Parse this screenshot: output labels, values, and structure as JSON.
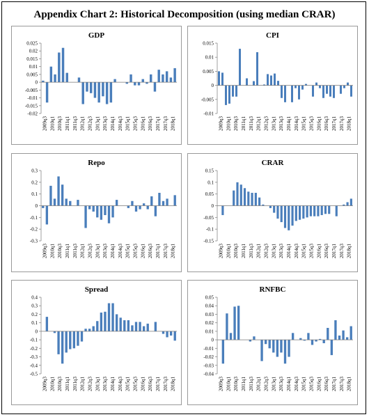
{
  "page": {
    "title": "Appendix Chart 2: Historical Decomposition (using median CRAR)"
  },
  "chart_data": [
    {
      "type": "bar",
      "title": "GDP",
      "ylim": [
        -0.02,
        0.025
      ],
      "yticks": [
        "-0.02",
        "-0.015",
        "-0.01",
        "-0.005",
        "0",
        "0.005",
        "0.01",
        "0.015",
        "0.02",
        "0.025"
      ],
      "x_tick_labels": [
        "2009q3",
        "2010q1",
        "2010q3",
        "2011q1",
        "2011q3",
        "2012q1",
        "2012q3",
        "2013q1",
        "2013q3",
        "2014q1",
        "2014q3",
        "2015q1",
        "2015q3",
        "2016q1",
        "2016q3",
        "2017q1",
        "2017q3",
        "2018q1"
      ],
      "color": "#4A7EBB",
      "values": [
        0.001,
        -0.013,
        0.01,
        0.005,
        0.019,
        0.022,
        0.006,
        0.0,
        0.0,
        0.003,
        -0.014,
        -0.006,
        -0.007,
        -0.01,
        -0.013,
        -0.009,
        -0.014,
        -0.013,
        0.002,
        0.0,
        0.0,
        -0.001,
        0.005,
        -0.002,
        -0.002,
        0.002,
        -0.001,
        0.005,
        -0.006,
        0.008,
        0.005,
        0.007,
        0.003,
        0.009
      ]
    },
    {
      "type": "bar",
      "title": "CPI",
      "ylim": [
        -0.01,
        0.015
      ],
      "yticks": [
        "-0.01",
        "-0.005",
        "0",
        "0.005",
        "0.01",
        "0.015"
      ],
      "x_tick_labels": [
        "2009q3",
        "2010q1",
        "2010q3",
        "2011q1",
        "2011q3",
        "2012q1",
        "2012q3",
        "2013q1",
        "2013q3",
        "2014q1",
        "2014q3",
        "2015q1",
        "2015q3",
        "2016q1",
        "2016q3",
        "2017q1",
        "2017q3",
        "2018q1"
      ],
      "color": "#4A7EBB",
      "values": [
        0.005,
        0.0045,
        -0.007,
        -0.0065,
        -0.004,
        -0.004,
        0.013,
        0.0,
        0.0025,
        0.0,
        0.0015,
        0.0118,
        0.0,
        0.0003,
        0.004,
        0.0035,
        0.0042,
        0.0016,
        -0.0045,
        -0.006,
        0.0,
        -0.006,
        -0.001,
        -0.005,
        -0.0015,
        0.0005,
        0.0,
        -0.004,
        0.001,
        -0.001,
        -0.0045,
        -0.003,
        -0.004,
        -0.0045,
        0.0,
        -0.003,
        -0.001,
        0.001,
        -0.004
      ]
    },
    {
      "type": "bar",
      "title": "Repo",
      "ylim": [
        -0.3,
        0.3
      ],
      "yticks": [
        "-0.3",
        "-0.2",
        "-0.1",
        "0",
        "0.1",
        "0.2",
        "0.3"
      ],
      "x_tick_labels": [
        "2009q3",
        "2010q1",
        "2010q3",
        "2011q1",
        "2011q3",
        "2012q1",
        "2012q3",
        "2013q1",
        "2013q3",
        "2014q1",
        "2014q3",
        "2015q1",
        "2015q3",
        "2016q1",
        "2016q3",
        "2017q1",
        "2017q3",
        "2018q1"
      ],
      "color": "#4A7EBB",
      "values": [
        -0.02,
        -0.16,
        0.17,
        0.06,
        0.25,
        0.18,
        0.06,
        0.04,
        0.0,
        0.05,
        0.0,
        -0.19,
        -0.03,
        -0.05,
        -0.1,
        -0.12,
        -0.08,
        -0.15,
        -0.1,
        0.05,
        0.0,
        0.0,
        -0.02,
        0.04,
        -0.05,
        -0.03,
        0.02,
        -0.03,
        0.08,
        -0.09,
        0.11,
        0.04,
        0.06,
        0.0,
        0.09
      ]
    },
    {
      "type": "bar",
      "title": "CRAR",
      "ylim": [
        -0.15,
        0.15
      ],
      "yticks": [
        "-0.15",
        "-0.1",
        "-0.05",
        "0",
        "0.05",
        "0.1",
        "0.15"
      ],
      "x_tick_labels": [
        "2009q3",
        "2010q1",
        "2010q3",
        "2011q1",
        "2011q3",
        "2012q1",
        "2012q3",
        "2013q1",
        "2013q3",
        "2014q1",
        "2014q3",
        "2015q1",
        "2015q3",
        "2016q1",
        "2016q3",
        "2017q1",
        "2017q3",
        "2018q1"
      ],
      "color": "#4A7EBB",
      "values": [
        0.0,
        -0.04,
        0.0,
        0.0,
        0.065,
        0.1,
        0.09,
        0.075,
        0.06,
        0.055,
        0.055,
        0.035,
        0.005,
        0.0,
        -0.01,
        -0.03,
        -0.055,
        -0.07,
        -0.095,
        -0.105,
        -0.085,
        -0.065,
        -0.06,
        -0.055,
        -0.05,
        -0.045,
        -0.045,
        -0.045,
        -0.04,
        -0.035,
        -0.035,
        0.0,
        -0.045,
        0.0,
        0.005,
        0.015,
        0.03
      ]
    },
    {
      "type": "bar",
      "title": "Spread",
      "ylim": [
        -0.5,
        0.4
      ],
      "yticks": [
        "-0.5",
        "-0.4",
        "-0.3",
        "-0.2",
        "-0.1",
        "0",
        "0.1",
        "0.2",
        "0.3",
        "0.4"
      ],
      "x_tick_labels": [
        "2009q3",
        "2010q1",
        "2010q3",
        "2011q1",
        "2011q3",
        "2012q1",
        "2012q3",
        "2013q1",
        "2013q3",
        "2014q1",
        "2014q3",
        "2015q1",
        "2015q3",
        "2016q1",
        "2016q3",
        "2017q1",
        "2017q3",
        "2018q1"
      ],
      "color": "#4A7EBB",
      "values": [
        0.0,
        0.17,
        0.0,
        -0.02,
        -0.27,
        -0.38,
        -0.25,
        -0.21,
        -0.2,
        -0.17,
        -0.12,
        0.03,
        0.03,
        0.06,
        0.12,
        0.22,
        0.23,
        0.33,
        0.33,
        0.2,
        0.16,
        0.13,
        0.13,
        0.07,
        0.11,
        0.11,
        0.06,
        0.09,
        0.0,
        0.11,
        0.0,
        -0.03,
        -0.07,
        -0.05,
        -0.11
      ]
    },
    {
      "type": "bar",
      "title": "RNFBC",
      "ylim": [
        -0.04,
        0.05
      ],
      "yticks": [
        "-0.04",
        "-0.03",
        "-0.02",
        "-0.01",
        "0",
        "0.01",
        "0.02",
        "0.03",
        "0.04",
        "0.05"
      ],
      "x_tick_labels": [
        "2009q3",
        "2010q1",
        "2010q3",
        "2011q1",
        "2011q3",
        "2012q1",
        "2012q3",
        "2013q1",
        "2013q3",
        "2014q1",
        "2014q3",
        "2015q1",
        "2015q3",
        "2016q1",
        "2016q3",
        "2017q1",
        "2017q3",
        "2018q1"
      ],
      "color": "#4A7EBB",
      "values": [
        0.0,
        -0.028,
        0.031,
        0.008,
        0.039,
        0.04,
        0.0,
        0.0,
        -0.002,
        0.004,
        0.0,
        -0.025,
        -0.005,
        -0.01,
        -0.015,
        -0.02,
        -0.015,
        -0.028,
        -0.02,
        0.008,
        0.0,
        0.002,
        -0.001,
        0.008,
        -0.006,
        -0.002,
        0.001,
        -0.004,
        0.014,
        -0.018,
        0.023,
        0.005,
        0.011,
        0.003,
        0.016
      ]
    }
  ]
}
